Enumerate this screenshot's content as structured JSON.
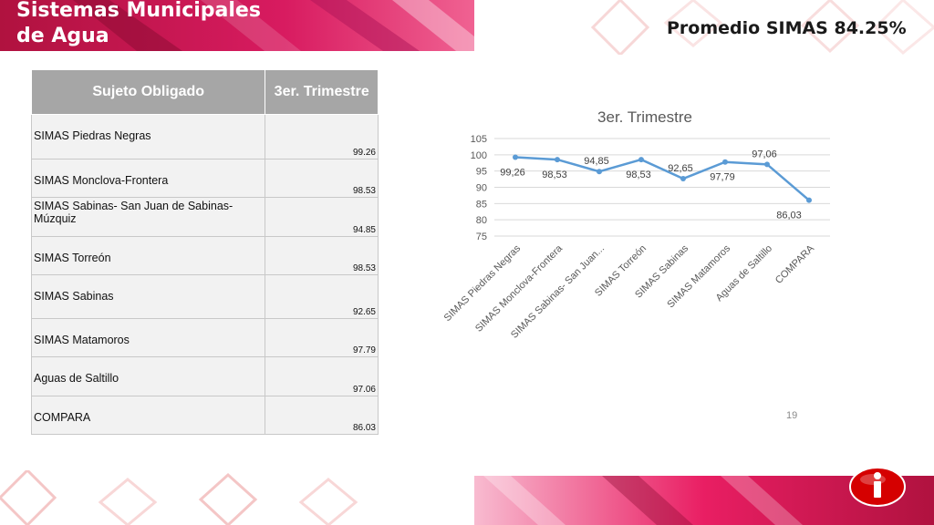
{
  "header": {
    "title_line1": "Sistemas Municipales",
    "title_line2": "de Agua",
    "promedio": "Promedio  SIMAS 84.25%"
  },
  "table": {
    "col_name": "Sujeto Obligado",
    "col_value": "3er. Trimestre",
    "rows": [
      {
        "name": "SIMAS Piedras Negras",
        "value": "99.26"
      },
      {
        "name": "SIMAS Monclova-Frontera",
        "value": "98.53"
      },
      {
        "name": "SIMAS Sabinas- San Juan de Sabinas-Múzquiz",
        "value": "94.85"
      },
      {
        "name": "SIMAS Torreón",
        "value": "98.53"
      },
      {
        "name": "SIMAS Sabinas",
        "value": "92.65"
      },
      {
        "name": "SIMAS Matamoros",
        "value": "97.79"
      },
      {
        "name": "Aguas de Saltillo",
        "value": "97.06"
      },
      {
        "name": "COMPARA",
        "value": "86.03"
      }
    ]
  },
  "chart_data": {
    "type": "line",
    "title": "3er. Trimestre",
    "categories": [
      "SIMAS Piedras Negras",
      "SIMAS Monclova-Frontera",
      "SIMAS Sabinas- San Juan...",
      "SIMAS Torreón",
      "SIMAS Sabinas",
      "SIMAS Matamoros",
      "Aguas de Saltillo",
      "COMPARA"
    ],
    "values": [
      99.26,
      98.53,
      94.85,
      98.53,
      92.65,
      97.79,
      97.06,
      86.03
    ],
    "data_labels": [
      "99,26",
      "98,53",
      "94,85",
      "98,53",
      "92,65",
      "97,79",
      "97,06",
      "86,03"
    ],
    "ylim": [
      75,
      105
    ],
    "yticks": [
      "75",
      "80",
      "85",
      "90",
      "95",
      "100",
      "105"
    ],
    "grid": true,
    "color": "#5b9bd5"
  },
  "footer": {
    "page_number": "19"
  },
  "colors": {
    "brand": "#c2185b",
    "accent": "#e91e63"
  }
}
